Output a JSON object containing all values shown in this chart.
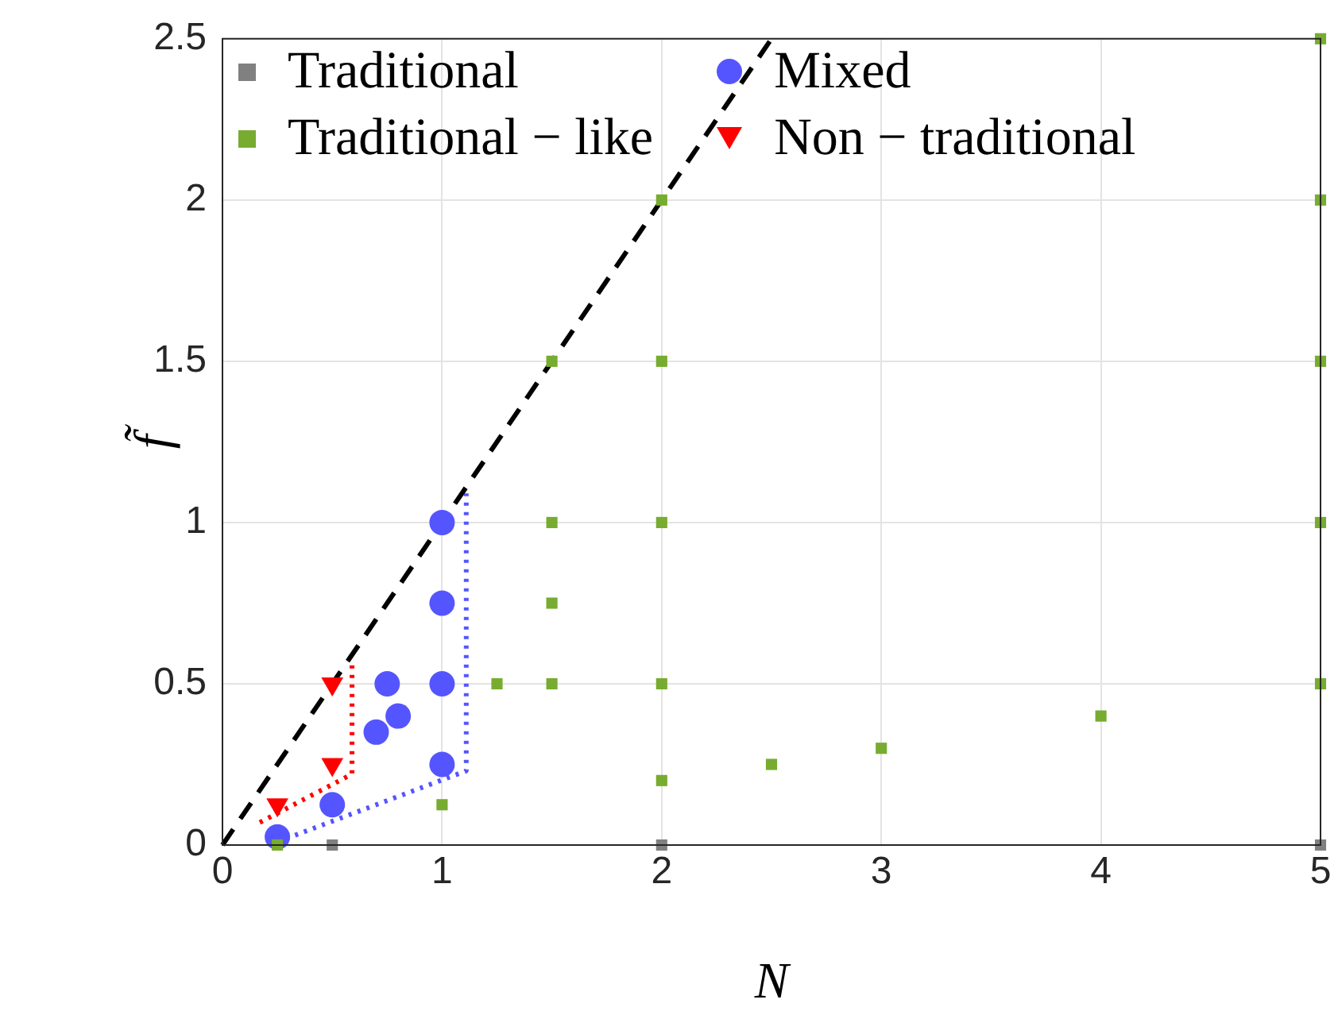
{
  "chart_data": {
    "type": "scatter",
    "xlabel": "N",
    "ylabel": "f̃",
    "xlim": [
      0,
      5
    ],
    "xticks": [
      0,
      1,
      2,
      3,
      4,
      5
    ],
    "ylim": [
      0,
      2.5
    ],
    "yticks": [
      0,
      0.5,
      1,
      1.5,
      2,
      2.5
    ],
    "grid": true,
    "legend": "top",
    "series": [
      {
        "name": "Traditional",
        "color": "#808080",
        "marker": "square",
        "x": [
          0.5,
          2,
          5
        ],
        "values": [
          0,
          0,
          0
        ]
      },
      {
        "name": "Traditional − like",
        "color": "#77ac30",
        "marker": "square",
        "x": [
          0.25,
          1,
          1.25,
          1.5,
          1.5,
          1.5,
          1.5,
          2,
          2,
          2,
          2,
          2,
          2.5,
          3,
          4,
          5,
          5,
          5,
          5,
          5
        ],
        "values": [
          0,
          0.125,
          0.5,
          0.5,
          0.75,
          1,
          1.5,
          0.2,
          0.5,
          1,
          1.5,
          2,
          0.25,
          0.3,
          0.4,
          0.5,
          1,
          1.5,
          2,
          2.5
        ]
      },
      {
        "name": "Mixed",
        "color": "#5555ff",
        "marker": "circle",
        "x": [
          0.25,
          0.5,
          0.7,
          0.75,
          0.8,
          1,
          1,
          1,
          1
        ],
        "values": [
          0.025,
          0.125,
          0.35,
          0.5,
          0.4,
          0.25,
          0.5,
          0.75,
          1
        ]
      },
      {
        "name": "Non − traditional",
        "color": "#ff0000",
        "marker": "triangle",
        "x": [
          0.25,
          0.5,
          0.5
        ],
        "values": [
          0.125,
          0.25,
          0.5
        ]
      },
      {
        "type": "line",
        "color": "#000000",
        "line_style": "dashed",
        "marker": "none",
        "x": [
          0,
          2.5
        ],
        "values": [
          0,
          2.5
        ]
      },
      {
        "type": "line",
        "color": "#5555ff",
        "line_style": "dotted",
        "marker": "none",
        "x": [
          0.29,
          1.11,
          1.11
        ],
        "values": [
          0.02,
          0.23,
          1.09
        ]
      },
      {
        "type": "line",
        "color": "#ff0000",
        "line_style": "dotted",
        "marker": "none",
        "x": [
          0.17,
          0.59,
          0.59
        ],
        "values": [
          0.07,
          0.22,
          0.57
        ]
      }
    ]
  }
}
